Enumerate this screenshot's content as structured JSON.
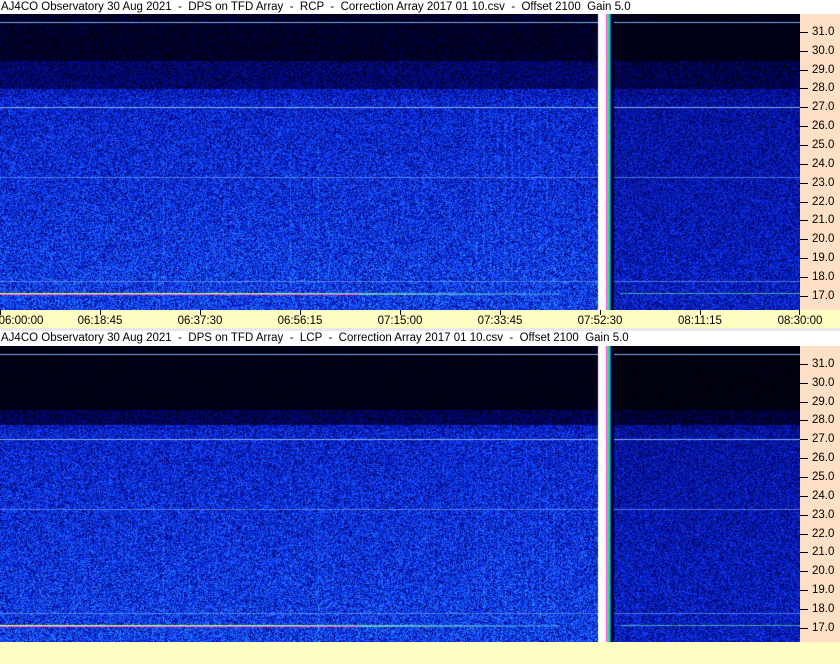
{
  "chart_data": [
    {
      "type": "heatmap",
      "title": "AJ4CO Observatory 30 Aug 2021  -  DPS on TFD Array  -  RCP  -  Correction Array 2017 01 10.csv  -  Offset 2100  Gain 5.0",
      "polarization": "RCP",
      "x_range": [
        "06:00:00",
        "08:30:00"
      ],
      "x_ticks": [
        "06:00:00",
        "06:18:45",
        "06:37:30",
        "06:56:15",
        "07:15:00",
        "07:33:45",
        "07:52:30",
        "08:11:15",
        "08:30:00"
      ],
      "y_range": [
        16.25,
        31.95
      ],
      "y_ticks": [
        "17.0",
        "18.0",
        "19.0",
        "20.0",
        "21.0",
        "22.0",
        "23.0",
        "24.0",
        "25.0",
        "26.0",
        "27.0",
        "28.0",
        "29.0",
        "30.0",
        "31.0"
      ],
      "data_gap": [
        "07:52:30",
        "07:54:00"
      ]
    },
    {
      "type": "heatmap",
      "title": "AJ4CO Observatory 30 Aug 2021  -  DPS on TFD Array  -  LCP  -  Correction Array 2017 01 10.csv  -  Offset 2100  Gain 5.0",
      "polarization": "LCP",
      "x_range": [
        "06:00:00",
        "08:30:00"
      ],
      "y_range": [
        16.25,
        31.95
      ],
      "y_ticks": [
        "17.0",
        "18.0",
        "19.0",
        "20.0",
        "21.0",
        "22.0",
        "23.0",
        "24.0",
        "25.0",
        "26.0",
        "27.0",
        "28.0",
        "29.0",
        "30.0",
        "31.0"
      ],
      "data_gap": [
        "07:52:30",
        "07:54:00"
      ]
    }
  ],
  "colors": {
    "low": "#000018",
    "mid": "#1a3cc8",
    "high": "#6fb4ff",
    "axis_freq_bg": "#fde0c6",
    "axis_time_bg": "#ffffc4"
  }
}
